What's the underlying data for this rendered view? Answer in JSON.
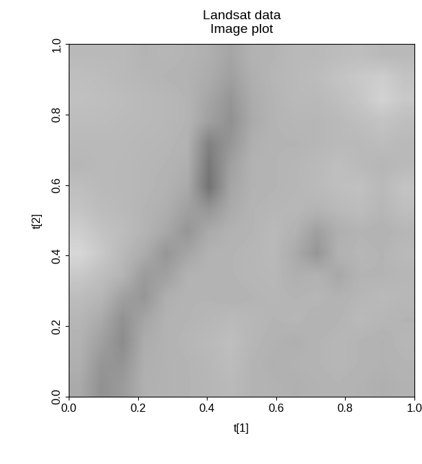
{
  "chart_data": {
    "type": "heatmap",
    "title": "Landsat data",
    "subtitle": "Image plot",
    "x_label": "t[1]",
    "y_label": "t[2]",
    "xlim": [
      0,
      1
    ],
    "ylim": [
      0,
      1
    ],
    "xticks": [
      {
        "value": 0,
        "label": "0.0"
      },
      0.2,
      0.4,
      0.6,
      0.8,
      {
        "value": 1,
        "label": "1.0"
      }
    ],
    "yticks": [
      {
        "value": 0,
        "label": "0.0"
      },
      0.2,
      0.4,
      0.6,
      0.8,
      {
        "value": 1,
        "label": "1.0"
      }
    ],
    "zlim": [
      0,
      255
    ],
    "color": "gray",
    "cells": [
      [
        185,
        185,
        185,
        180,
        182,
        180,
        175,
        165,
        178,
        180,
        185,
        185,
        188,
        190,
        185,
        185
      ],
      [
        190,
        188,
        185,
        182,
        180,
        178,
        172,
        160,
        175,
        182,
        185,
        188,
        195,
        200,
        205,
        195
      ],
      [
        192,
        190,
        188,
        185,
        183,
        180,
        165,
        150,
        172,
        180,
        185,
        185,
        190,
        198,
        210,
        200
      ],
      [
        188,
        188,
        186,
        185,
        183,
        180,
        160,
        145,
        170,
        180,
        182,
        182,
        185,
        190,
        195,
        190
      ],
      [
        185,
        185,
        185,
        183,
        182,
        178,
        130,
        150,
        175,
        180,
        180,
        182,
        185,
        185,
        188,
        185
      ],
      [
        182,
        185,
        184,
        182,
        180,
        175,
        120,
        160,
        178,
        180,
        182,
        185,
        190,
        185,
        182,
        185
      ],
      [
        190,
        185,
        184,
        182,
        178,
        170,
        115,
        165,
        178,
        180,
        182,
        186,
        190,
        192,
        185,
        195
      ],
      [
        195,
        188,
        185,
        180,
        175,
        160,
        150,
        170,
        180,
        182,
        183,
        180,
        185,
        188,
        182,
        190
      ],
      [
        205,
        195,
        188,
        180,
        168,
        150,
        170,
        178,
        180,
        185,
        178,
        160,
        175,
        180,
        178,
        182
      ],
      [
        215,
        200,
        185,
        172,
        150,
        165,
        178,
        180,
        182,
        185,
        170,
        150,
        178,
        182,
        180,
        185
      ],
      [
        200,
        190,
        180,
        155,
        160,
        178,
        180,
        180,
        182,
        183,
        175,
        178,
        168,
        180,
        180,
        182
      ],
      [
        188,
        182,
        160,
        150,
        175,
        180,
        180,
        178,
        180,
        182,
        180,
        182,
        178,
        182,
        185,
        183
      ],
      [
        182,
        170,
        145,
        165,
        178,
        180,
        182,
        185,
        183,
        180,
        182,
        178,
        180,
        185,
        182,
        180
      ],
      [
        178,
        160,
        140,
        172,
        178,
        182,
        185,
        190,
        182,
        178,
        175,
        180,
        182,
        180,
        178,
        182
      ],
      [
        175,
        150,
        148,
        175,
        178,
        180,
        183,
        188,
        180,
        176,
        178,
        180,
        182,
        180,
        178,
        180
      ],
      [
        170,
        145,
        155,
        176,
        178,
        180,
        182,
        185,
        180,
        178,
        176,
        178,
        180,
        178,
        175,
        178
      ]
    ]
  }
}
